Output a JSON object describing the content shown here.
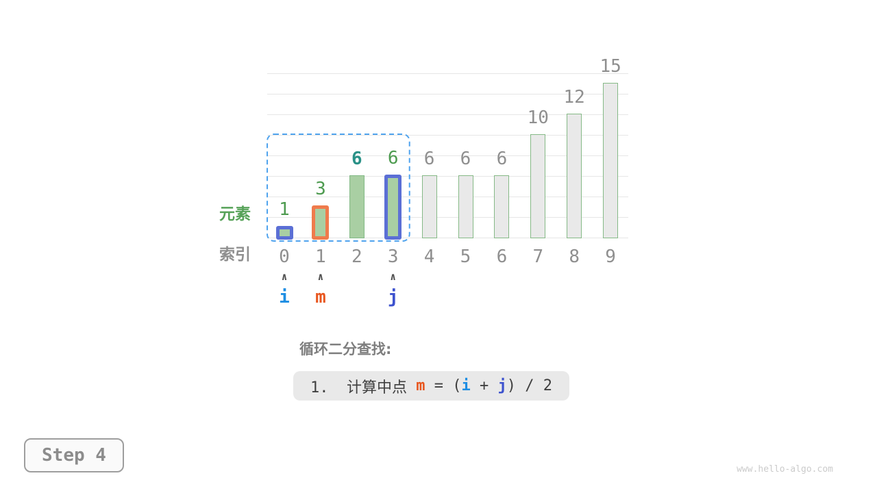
{
  "watermark": "www.hello-algo.com",
  "step_badge": {
    "label": "Step 4"
  },
  "row_labels": {
    "element": "元素",
    "element_color": "#56A258",
    "index": "索引",
    "index_color": "#8F8F8F"
  },
  "chart_data": {
    "type": "bar",
    "title": "",
    "categories": [
      "0",
      "1",
      "2",
      "3",
      "4",
      "5",
      "6",
      "7",
      "8",
      "9"
    ],
    "values": [
      1,
      3,
      6,
      6,
      6,
      6,
      6,
      10,
      12,
      15
    ],
    "ylim": [
      0,
      16
    ],
    "gridline_step": 2,
    "grid": true,
    "grid_color": "#E6E6E6",
    "index_label_color": "#8F8F8F",
    "bars": [
      {
        "index": 0,
        "value": 1,
        "fill": "#A9CFA3",
        "border_color": "#5B6FD5",
        "border_width": 5,
        "label_color": "#4E9B50",
        "label_bold": false
      },
      {
        "index": 1,
        "value": 3,
        "fill": "#A9CFA3",
        "border_color": "#EF7B4C",
        "border_width": 5,
        "label_color": "#4E9B50",
        "label_bold": false
      },
      {
        "index": 2,
        "value": 6,
        "fill": "#A9CFA3",
        "border_color": "#82B985",
        "border_width": 1.5,
        "label_color": "#2A9187",
        "label_bold": true
      },
      {
        "index": 3,
        "value": 6,
        "fill": "#A9CFA3",
        "border_color": "#5B6FD5",
        "border_width": 5,
        "label_color": "#4E9B50",
        "label_bold": false
      },
      {
        "index": 4,
        "value": 6,
        "fill": "#E9E9E9",
        "border_color": "#85B986",
        "border_width": 1.5,
        "label_color": "#8F8F8F",
        "label_bold": false
      },
      {
        "index": 5,
        "value": 6,
        "fill": "#E9E9E9",
        "border_color": "#85B986",
        "border_width": 1.5,
        "label_color": "#8F8F8F",
        "label_bold": false
      },
      {
        "index": 6,
        "value": 6,
        "fill": "#E9E9E9",
        "border_color": "#85B986",
        "border_width": 1.5,
        "label_color": "#8F8F8F",
        "label_bold": false
      },
      {
        "index": 7,
        "value": 10,
        "fill": "#E9E9E9",
        "border_color": "#85B986",
        "border_width": 1.5,
        "label_color": "#8F8F8F",
        "label_bold": false
      },
      {
        "index": 8,
        "value": 12,
        "fill": "#E9E9E9",
        "border_color": "#85B986",
        "border_width": 1.5,
        "label_color": "#8F8F8F",
        "label_bold": false
      },
      {
        "index": 9,
        "value": 15,
        "fill": "#E9E9E9",
        "border_color": "#85B986",
        "border_width": 1.5,
        "label_color": "#8F8F8F",
        "label_bold": false
      }
    ]
  },
  "selection": {
    "from_index": 0,
    "to_index": 3,
    "color": "#4FA3EE",
    "style": "dashed"
  },
  "pointer_caret": {
    "glyph": "∧",
    "color": "#4F4F4F"
  },
  "pointers": [
    {
      "label": "i",
      "index": 0,
      "color": "#1E8EE3"
    },
    {
      "label": "m",
      "index": 1,
      "color": "#E8561E"
    },
    {
      "label": "j",
      "index": 3,
      "color": "#3D52CE"
    }
  ],
  "caption": {
    "heading": "循环二分查找:",
    "formula_parts": [
      {
        "text": "1.  计算中点 ",
        "color": "#3F3F3F",
        "bold": false
      },
      {
        "text": "m",
        "color": "#E8561E",
        "bold": true
      },
      {
        "text": " = (",
        "color": "#3F3F3F",
        "bold": false
      },
      {
        "text": "i",
        "color": "#1E8EE3",
        "bold": true
      },
      {
        "text": " + ",
        "color": "#3F3F3F",
        "bold": false
      },
      {
        "text": "j",
        "color": "#3D52CE",
        "bold": true
      },
      {
        "text": ") / 2",
        "color": "#3F3F3F",
        "bold": false
      }
    ]
  }
}
